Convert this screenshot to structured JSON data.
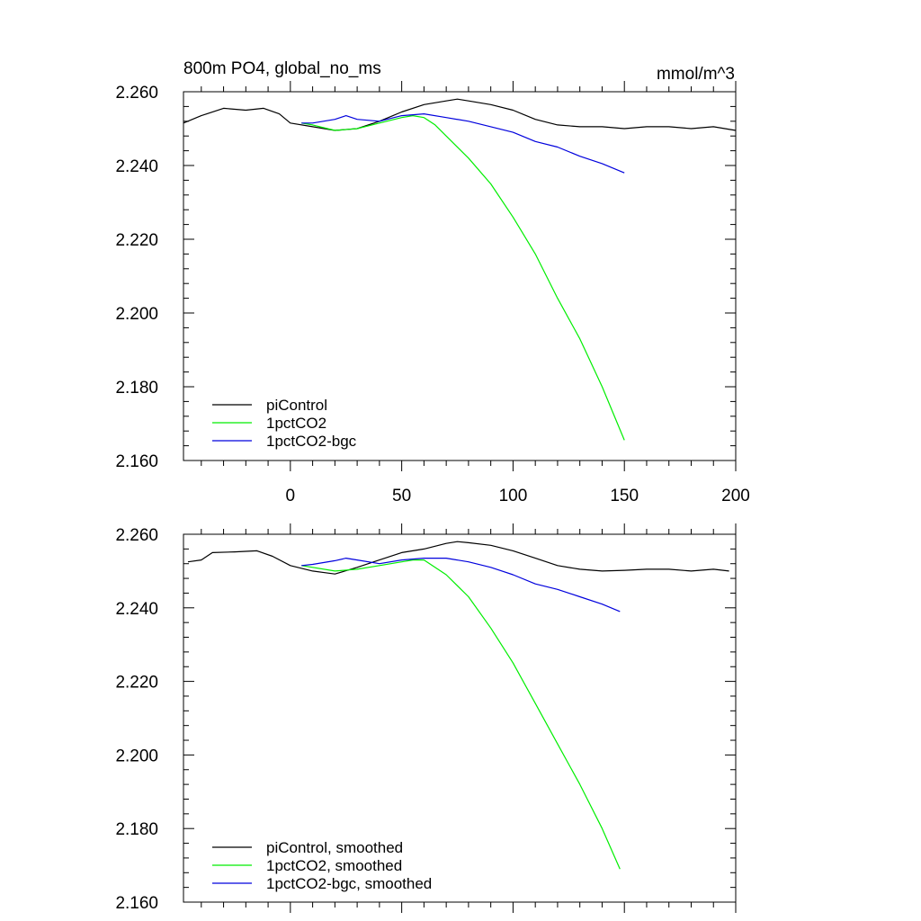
{
  "chart_data": [
    {
      "type": "line",
      "title": "800m PO4, global_no_ms",
      "units": "mmol/m^3",
      "xlim": [
        -48,
        200
      ],
      "ylim": [
        2.16,
        2.26
      ],
      "xticks": [
        0,
        50,
        100,
        150,
        200
      ],
      "xtick_labels": [
        "0",
        "50",
        "100",
        "150",
        "200"
      ],
      "yticks": [
        2.16,
        2.18,
        2.2,
        2.22,
        2.24,
        2.26
      ],
      "ytick_labels": [
        "2.160",
        "2.180",
        "2.200",
        "2.220",
        "2.240",
        "2.260"
      ],
      "legend_position": "bottom-left",
      "series": [
        {
          "name": "piControl",
          "color": "#000000",
          "x": [
            -48,
            -40,
            -30,
            -20,
            -12,
            -5,
            0,
            10,
            20,
            30,
            40,
            50,
            60,
            70,
            75,
            80,
            90,
            100,
            110,
            120,
            130,
            140,
            150,
            160,
            170,
            180,
            190,
            200
          ],
          "y": [
            2.2515,
            2.2535,
            2.2555,
            2.255,
            2.2555,
            2.254,
            2.2515,
            2.2505,
            2.2495,
            2.25,
            2.252,
            2.2545,
            2.2565,
            2.2575,
            2.258,
            2.2575,
            2.2565,
            2.255,
            2.2525,
            2.251,
            2.2505,
            2.2505,
            2.25,
            2.2505,
            2.2505,
            2.25,
            2.2505,
            2.2495
          ]
        },
        {
          "name": "1pctCO2",
          "color": "#00ee00",
          "x": [
            5,
            10,
            20,
            30,
            40,
            50,
            55,
            60,
            65,
            70,
            80,
            90,
            100,
            110,
            120,
            130,
            140,
            150
          ],
          "y": [
            2.2515,
            2.251,
            2.2495,
            2.25,
            2.2515,
            2.253,
            2.2535,
            2.253,
            2.251,
            2.248,
            2.242,
            2.235,
            2.226,
            2.216,
            2.204,
            2.193,
            2.18,
            2.1655
          ]
        },
        {
          "name": "1pctCO2-bgc",
          "color": "#0000dd",
          "x": [
            5,
            10,
            20,
            25,
            30,
            40,
            50,
            60,
            70,
            80,
            90,
            100,
            110,
            120,
            130,
            140,
            150
          ],
          "y": [
            2.2515,
            2.2515,
            2.2525,
            2.2535,
            2.2525,
            2.252,
            2.2535,
            2.254,
            2.253,
            2.252,
            2.2505,
            2.249,
            2.2465,
            2.245,
            2.2425,
            2.2405,
            2.238
          ]
        }
      ]
    },
    {
      "type": "line",
      "xlim": [
        -48,
        200
      ],
      "ylim": [
        2.16,
        2.26
      ],
      "xticks": [
        0,
        50,
        100,
        150,
        200
      ],
      "yticks": [
        2.16,
        2.18,
        2.2,
        2.22,
        2.24,
        2.26
      ],
      "ytick_labels": [
        "2.160",
        "2.180",
        "2.200",
        "2.220",
        "2.240",
        "2.260"
      ],
      "legend_position": "bottom-left",
      "series": [
        {
          "name": "piControl, smoothed",
          "color": "#000000",
          "x": [
            -46,
            -40,
            -35,
            -25,
            -15,
            -8,
            0,
            10,
            20,
            30,
            40,
            50,
            60,
            70,
            75,
            80,
            90,
            100,
            110,
            120,
            130,
            140,
            150,
            160,
            170,
            180,
            190,
            197
          ],
          "y": [
            2.2525,
            2.253,
            2.255,
            2.2552,
            2.2555,
            2.254,
            2.2515,
            2.25,
            2.2492,
            2.251,
            2.253,
            2.255,
            2.256,
            2.2575,
            2.258,
            2.2577,
            2.257,
            2.2555,
            2.2535,
            2.2515,
            2.2505,
            2.25,
            2.2502,
            2.2505,
            2.2505,
            2.25,
            2.2505,
            2.25
          ]
        },
        {
          "name": "1pctCO2, smoothed",
          "color": "#00ee00",
          "x": [
            5,
            10,
            20,
            30,
            40,
            50,
            55,
            60,
            70,
            80,
            90,
            100,
            110,
            120,
            130,
            140,
            148
          ],
          "y": [
            2.2515,
            2.251,
            2.25,
            2.2505,
            2.2515,
            2.2525,
            2.253,
            2.253,
            2.249,
            2.243,
            2.2345,
            2.225,
            2.214,
            2.203,
            2.192,
            2.18,
            2.169
          ]
        },
        {
          "name": "1pctCO2-bgc, smoothed",
          "color": "#0000dd",
          "x": [
            5,
            10,
            20,
            25,
            30,
            40,
            50,
            60,
            70,
            80,
            90,
            100,
            110,
            120,
            130,
            140,
            148
          ],
          "y": [
            2.2515,
            2.2518,
            2.2528,
            2.2535,
            2.253,
            2.252,
            2.253,
            2.2535,
            2.2535,
            2.2525,
            2.251,
            2.249,
            2.2465,
            2.245,
            2.243,
            2.241,
            2.239
          ]
        }
      ]
    }
  ]
}
